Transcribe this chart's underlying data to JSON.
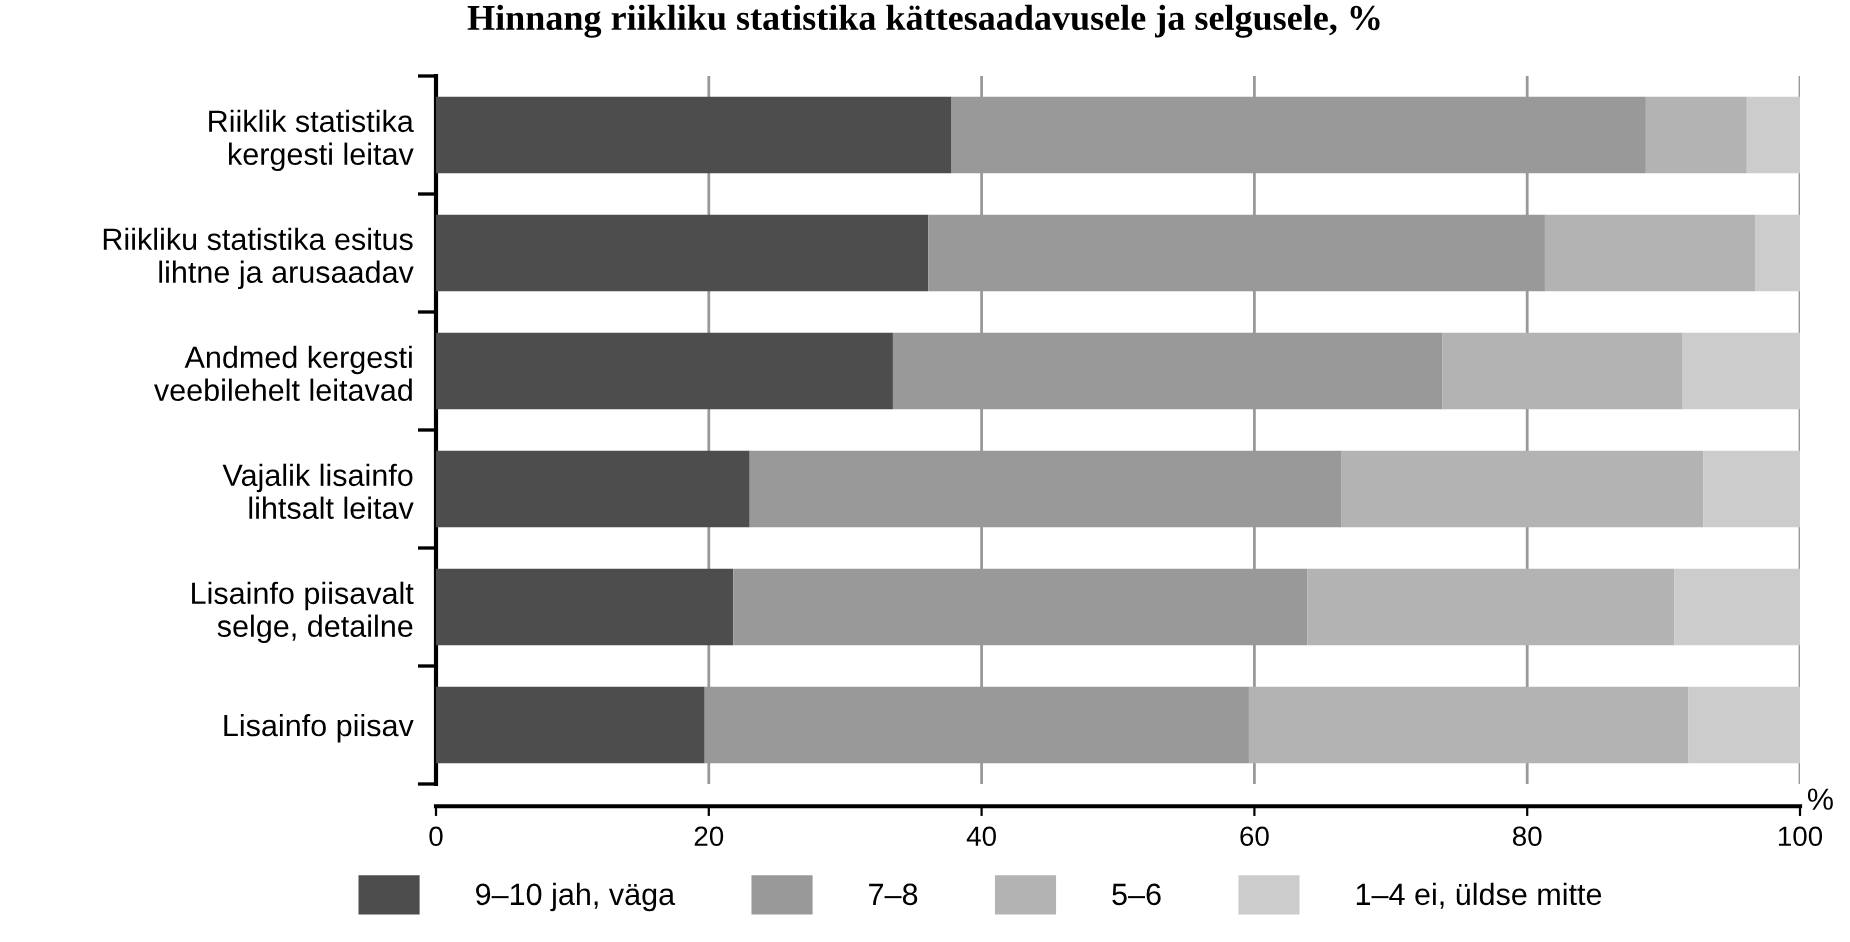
{
  "chart_data": {
    "type": "bar",
    "orientation": "horizontal",
    "stacked": true,
    "title": "Hinnang riikliku statistika kättesaadavusele ja selgusele, %",
    "xlabel": "%",
    "categories": [
      "Riiklik statistika\nkergesti leitav",
      "Riikliku statistika esitus\nlihtne ja arusaadav",
      "Andmed kergesti\nveebilehelt leitavad",
      "Vajalik lisainfo\nlihtsalt leitav",
      "Lisainfo piisavalt\nselge, detailne",
      "Lisainfo piisav"
    ],
    "series": [
      {
        "name": "9–10 jah, väga",
        "color": "#4d4d4d",
        "values": [
          37.8,
          36.1,
          33.5,
          23.0,
          21.8,
          19.7
        ]
      },
      {
        "name": "7–8",
        "color": "#999999",
        "values": [
          50.9,
          45.2,
          40.3,
          43.4,
          42.1,
          39.9
        ]
      },
      {
        "name": "5–6",
        "color": "#b3b3b3",
        "values": [
          7.4,
          15.4,
          17.6,
          26.5,
          26.9,
          32.2
        ]
      },
      {
        "name": "1–4 ei, üldse mitte",
        "color": "#cccccc",
        "values": [
          3.9,
          3.3,
          8.6,
          7.1,
          9.2,
          8.2
        ]
      }
    ],
    "xlim": [
      0,
      100
    ],
    "xticks": [
      0,
      20,
      40,
      60,
      80,
      100
    ],
    "grid": "x",
    "legend": "bottom"
  }
}
